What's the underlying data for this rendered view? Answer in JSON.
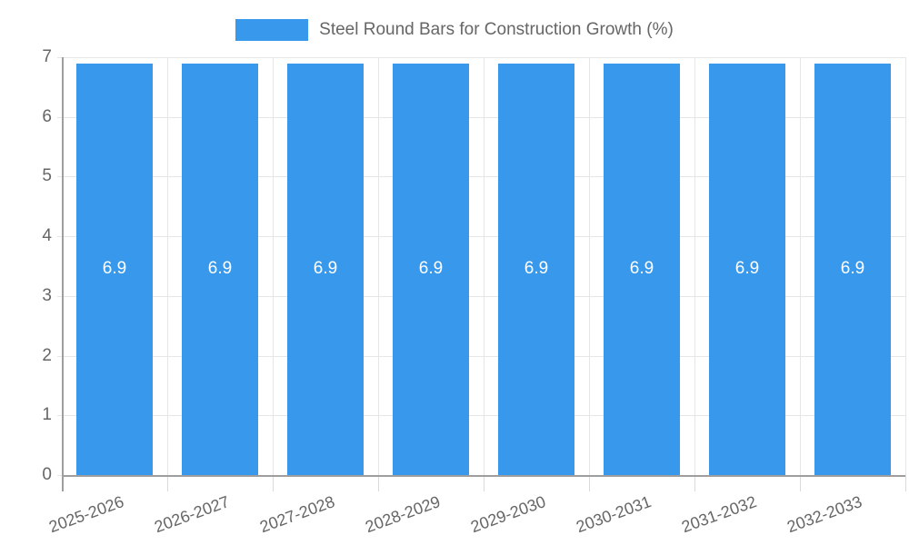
{
  "legend": {
    "label": "Steel Round Bars for Construction Growth (%)"
  },
  "chart_data": {
    "type": "bar",
    "title": "Steel Round Bars for Construction Growth (%)",
    "categories": [
      "2025-2026",
      "2026-2027",
      "2027-2028",
      "2028-2029",
      "2029-2030",
      "2030-2031",
      "2031-2032",
      "2032-2033"
    ],
    "series": [
      {
        "name": "Steel Round Bars for Construction Growth (%)",
        "values": [
          6.9,
          6.9,
          6.9,
          6.9,
          6.9,
          6.9,
          6.9,
          6.9
        ]
      }
    ],
    "value_label_decimals": 1,
    "xlabel": "",
    "ylabel": "",
    "ylim": [
      0,
      7
    ],
    "yticks": [
      0,
      1,
      2,
      3,
      4,
      5,
      6,
      7
    ],
    "grid": true,
    "legend_position": "top",
    "colors": {
      "bar": "#3899EC",
      "grid": "#E6E6E6",
      "axis": "#9E9E9E",
      "tick": "#DADADA",
      "tick_text": "#666666",
      "bar_label": "#FFFFFF"
    }
  }
}
